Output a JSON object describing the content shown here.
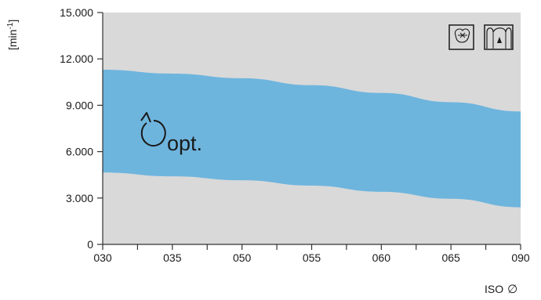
{
  "chart_data": {
    "type": "area",
    "ylabel": "[min",
    "ylabel_sup": "-1",
    "ylabel_close": "]",
    "xlabel": "ISO",
    "xlabel_symbol": "∅",
    "categories": [
      "030",
      "035",
      "050",
      "055",
      "060",
      "065",
      "090"
    ],
    "ylim": [
      0,
      15000
    ],
    "y_ticks": [
      0,
      3000,
      6000,
      9000,
      12000,
      15000
    ],
    "y_tick_labels": [
      "0",
      "3.000",
      "6.000",
      "9.000",
      "12.000",
      "15.000"
    ],
    "series": [
      {
        "upper": [
          11300,
          11050,
          10750,
          10300,
          9800,
          9200,
          8600
        ],
        "lower": [
          4650,
          4400,
          4150,
          3800,
          3400,
          2950,
          2400
        ]
      }
    ],
    "annotation": {
      "text": "opt.",
      "icon": "rotation-arrow-icon"
    },
    "grid": false,
    "colors": {
      "plot_background": "#d9d9d9",
      "band": "#6eb5de",
      "axis": "#333333"
    },
    "corner_icons": [
      "tooth-crown-icon",
      "tooth-canal-icon"
    ]
  }
}
